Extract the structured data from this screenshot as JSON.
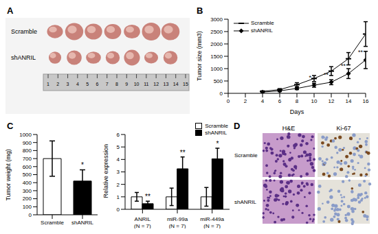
{
  "panels": {
    "A": {
      "letter": "A",
      "rows": [
        {
          "label": "Scramble",
          "count": 7
        },
        {
          "label": "shANRIL",
          "count": 7
        }
      ],
      "ruler_labels": [
        1,
        2,
        3,
        4,
        5,
        6,
        7,
        8,
        9,
        10,
        11,
        12,
        13,
        14,
        15
      ]
    },
    "D": {
      "letter": "D",
      "columns": [
        "H&E",
        "Ki-67"
      ],
      "rows": [
        "Scramble",
        "shANRIL"
      ]
    }
  },
  "chart_data": [
    {
      "type": "line",
      "title": "B",
      "x_label": "Days",
      "y_label": "Tumor size (mm3)",
      "x": [
        4,
        6,
        8,
        10,
        12,
        14,
        16
      ],
      "series": [
        {
          "name": "Scramble",
          "color": "#000000",
          "marker": "dash",
          "values": [
            80,
            150,
            350,
            600,
            900,
            1400,
            2400
          ],
          "errors": [
            20,
            40,
            80,
            120,
            180,
            250,
            500
          ]
        },
        {
          "name": "shANRIL",
          "color": "#000000",
          "marker": "diamond",
          "values": [
            50,
            100,
            200,
            330,
            450,
            800,
            1350
          ],
          "errors": [
            15,
            30,
            50,
            80,
            100,
            200,
            350
          ]
        }
      ],
      "annotations": [
        null,
        null,
        null,
        "*",
        "**",
        "**",
        "**"
      ],
      "xlim": [
        0,
        16
      ],
      "xticks": [
        0,
        2,
        4,
        6,
        8,
        10,
        12,
        14,
        16
      ],
      "ylim": [
        0,
        3000
      ],
      "yticks": [
        0,
        500,
        1000,
        1500,
        2000,
        2500,
        3000
      ],
      "legend": "upper left"
    },
    {
      "type": "bar",
      "title": "C",
      "y_label": "Tumor weight (mg)",
      "categories": [
        "Scramble",
        "shANRIL"
      ],
      "values": [
        700,
        420
      ],
      "errors": [
        220,
        140
      ],
      "colors": [
        "#ffffff",
        "#000000"
      ],
      "annotations": [
        null,
        "*"
      ],
      "ylim": [
        0,
        1000
      ],
      "yticks": [
        0,
        100,
        200,
        300,
        400,
        500,
        600,
        700,
        800,
        900,
        1000
      ]
    },
    {
      "type": "bar",
      "y_label": "Relative expression",
      "categories": [
        "ANRIL (N = 7)",
        "miR-99a (N = 7)",
        "miR-449a (N = 7)"
      ],
      "series": [
        {
          "name": "Scramble",
          "color": "#ffffff",
          "values": [
            1,
            1,
            1
          ],
          "errors": [
            0.35,
            0.7,
            0.75
          ]
        },
        {
          "name": "shANRIL",
          "color": "#000000",
          "values": [
            0.45,
            3.25,
            4.05
          ],
          "errors": [
            0.2,
            0.95,
            0.85
          ]
        }
      ],
      "annotations": [
        "**",
        "**",
        "*"
      ],
      "ylim": [
        0,
        6
      ],
      "yticks": [
        0,
        1,
        2,
        3,
        4,
        5,
        6
      ],
      "legend": "upper right"
    }
  ]
}
